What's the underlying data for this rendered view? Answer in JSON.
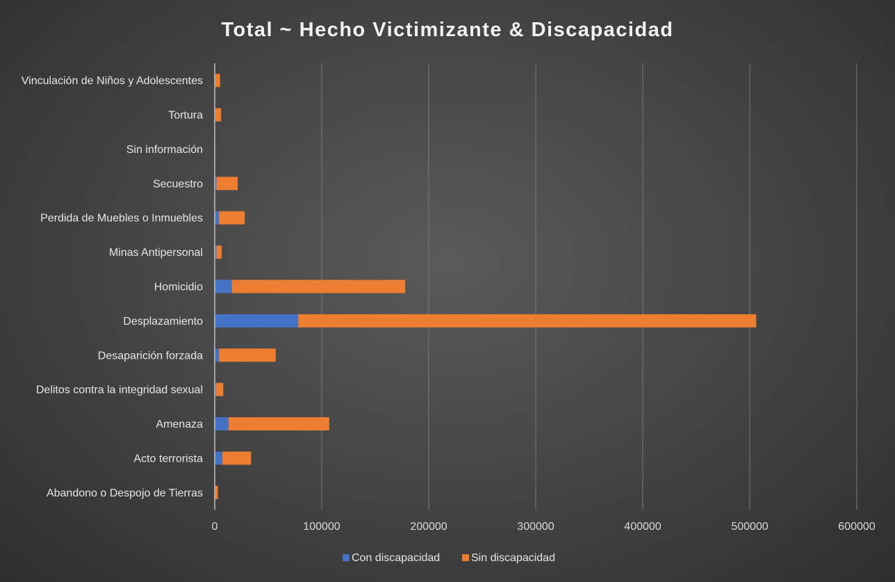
{
  "chart_data": {
    "type": "bar",
    "orientation": "horizontal",
    "stacked": true,
    "title": "Total ~ Hecho Victimizante & Discapacidad",
    "categories": [
      "Abandono o Despojo de Tierras",
      "Acto terrorista",
      "Amenaza",
      "Delitos contra la integridad sexual",
      "Desaparición forzada",
      "Desplazamiento",
      "Homicidio",
      "Minas Antipersonal",
      "Perdida de Muebles o Inmuebles",
      "Secuestro",
      "Sin información",
      "Tortura",
      "Vinculación de Niños y Adolescentes"
    ],
    "series": [
      {
        "name": "Con discapacidad",
        "color": "#4472c4",
        "values": [
          400,
          7000,
          13000,
          1000,
          4000,
          78000,
          16000,
          1500,
          4000,
          1500,
          100,
          600,
          500
        ]
      },
      {
        "name": "Sin discapacidad",
        "color": "#ed7d31",
        "values": [
          2600,
          27000,
          94000,
          7000,
          53000,
          428000,
          162000,
          5000,
          24000,
          20000,
          300,
          5400,
          4500
        ]
      }
    ],
    "xlim": [
      0,
      600000
    ],
    "xticks": [
      "0",
      "100000",
      "200000",
      "300000",
      "400000",
      "500000",
      "600000"
    ],
    "grid": true,
    "legend_position": "bottom"
  }
}
